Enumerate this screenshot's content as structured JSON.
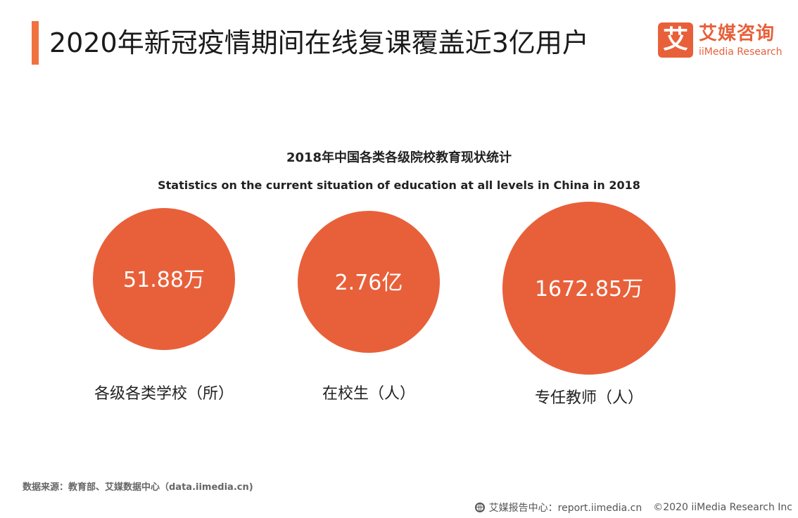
{
  "header": {
    "title": "2020年新冠疫情期间在线复课覆盖近3亿用户"
  },
  "logo": {
    "mark": "艾",
    "name_cn": "艾媒咨询",
    "name_en": "iiMedia Research"
  },
  "chart_data": {
    "type": "bubble",
    "title": "2018年中国各类各级院校教育现状统计",
    "subtitle": "Statistics on the current situation of education at all levels in China in 2018",
    "color": "#e8603a",
    "items": [
      {
        "category": "各级各类学校（所）",
        "value_label": "51.88万",
        "value": 518800
      },
      {
        "category": "在校生（人）",
        "value_label": "2.76亿",
        "value": 276000000
      },
      {
        "category": "专任教师（人）",
        "value_label": "1672.85万",
        "value": 16728500
      }
    ]
  },
  "footer": {
    "source": "数据来源：教育部、艾媒数据中心（data.iimedia.cn)",
    "site": "艾媒报告中心：report.iimedia.cn",
    "copyright": "©2020  iiMedia Research  Inc"
  }
}
